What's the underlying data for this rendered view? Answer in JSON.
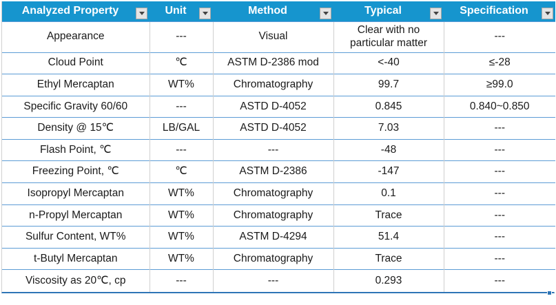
{
  "table": {
    "columns": [
      {
        "label": "Analyzed Property"
      },
      {
        "label": "Unit"
      },
      {
        "label": "Method"
      },
      {
        "label": "Typical"
      },
      {
        "label": "Specification"
      }
    ],
    "rows": [
      {
        "property": "Appearance",
        "unit": "---",
        "method": "Visual",
        "typical": "Clear with no particular matter",
        "specification": "---"
      },
      {
        "property": "Cloud Point",
        "unit": "℃",
        "method": "ASTM D-2386 mod",
        "typical": "<-40",
        "specification": "≤-28"
      },
      {
        "property": "Ethyl Mercaptan",
        "unit": "WT%",
        "method": "Chromatography",
        "typical": "99.7",
        "specification": "≥99.0"
      },
      {
        "property": "Specific Gravity 60/60",
        "unit": "---",
        "method": "ASTD D-4052",
        "typical": "0.845",
        "specification": "0.840~0.850"
      },
      {
        "property": "Density @ 15℃",
        "unit": "LB/GAL",
        "method": "ASTD D-4052",
        "typical": "7.03",
        "specification": "---"
      },
      {
        "property": "Flash Point, ℃",
        "unit": "---",
        "method": "---",
        "typical": "-48",
        "specification": "---"
      },
      {
        "property": "Freezing Point, ℃",
        "unit": "℃",
        "method": "ASTM D-2386",
        "typical": "-147",
        "specification": "---"
      },
      {
        "property": "Isopropyl Mercaptan",
        "unit": "WT%",
        "method": "Chromatography",
        "typical": "0.1",
        "specification": "---"
      },
      {
        "property": "n-Propyl Mercaptan",
        "unit": "WT%",
        "method": "Chromatography",
        "typical": "Trace",
        "specification": "---"
      },
      {
        "property": "Sulfur Content, WT%",
        "unit": "WT%",
        "method": "ASTM D-4294",
        "typical": "51.4",
        "specification": "---"
      },
      {
        "property": "t-Butyl Mercaptan",
        "unit": "WT%",
        "method": "Chromatography",
        "typical": "Trace",
        "specification": "---"
      },
      {
        "property": "Viscosity as 20℃, cp",
        "unit": "---",
        "method": "---",
        "typical": "0.293",
        "specification": "---"
      }
    ]
  },
  "icons": {
    "filter_dropdown": "filter-dropdown-arrow",
    "fill_handle": "selection-fill-handle"
  },
  "colors": {
    "header_bg": "#1695CE",
    "header_text": "#FFFFFF",
    "row_divider": "#5B9BD5",
    "column_divider": "#CFCFCF",
    "outer_bottom_border": "#2E75B6",
    "fill_handle": "#2E75B6",
    "filter_button_bg": "#E4E4E4",
    "filter_button_border": "#A6A6A6",
    "filter_arrow": "#444444",
    "body_text": "#1A1A1A"
  }
}
